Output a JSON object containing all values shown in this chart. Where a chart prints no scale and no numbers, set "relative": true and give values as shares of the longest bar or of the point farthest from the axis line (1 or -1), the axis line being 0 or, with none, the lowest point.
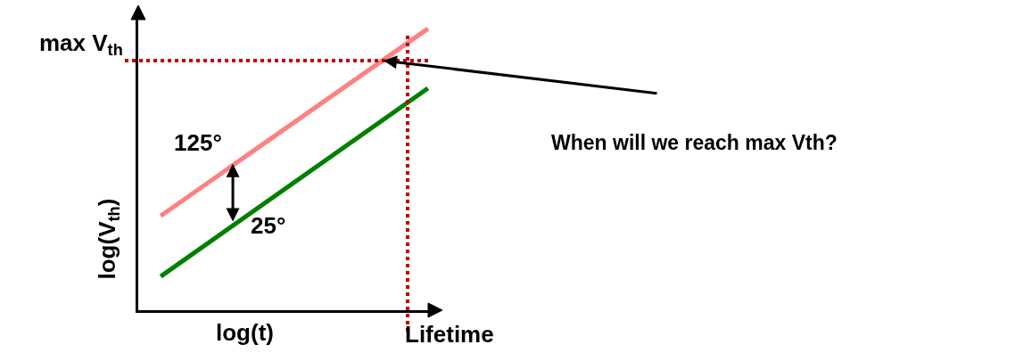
{
  "chart_data": {
    "type": "line",
    "relative": true,
    "xlabel": "log(t)",
    "ylabel": "log(V$_{th}$)",
    "categories": [
      null,
      null
    ],
    "series": [
      {
        "color": "#ff8080",
        "values": [
          0.335,
          1
        ]
      },
      {
        "color": "#008000",
        "values": [
          0.12,
          0.788
        ]
      }
    ],
    "ref_lines": [
      {
        "axis": "y",
        "value": 0.886,
        "label": "max V$_{th}$",
        "color": "#c00000",
        "line_style": "dotted"
      }
    ],
    "annotations": [
      "125°",
      "25°",
      "When will we reach max Vth?",
      "Lifetime"
    ],
    "marker": "none",
    "line_style": "solid"
  }
}
